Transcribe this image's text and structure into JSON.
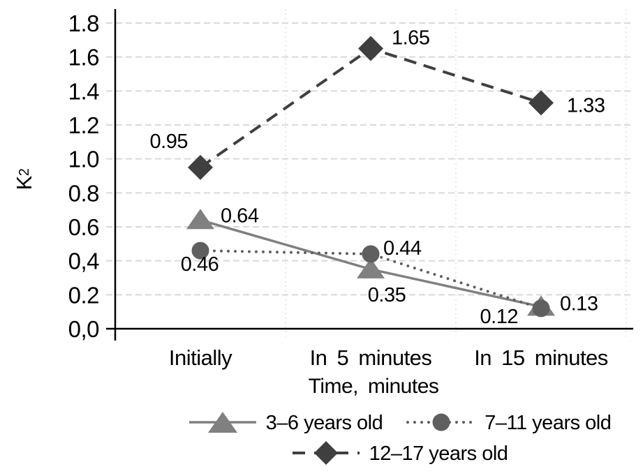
{
  "chart_data": {
    "type": "line",
    "title": "",
    "xlabel": "Time, minutes",
    "ylabel": {
      "base": "K",
      "sub": "2"
    },
    "categories": [
      "Initially",
      "In 5 minutes",
      "In 15 minutes"
    ],
    "y_ticks_bottom_up": [
      "0,0",
      "0.2",
      "0,4",
      "0.6",
      "0.8",
      "1.0",
      "1.2",
      "1.4",
      "1.6",
      "1.8"
    ],
    "ylim": [
      0,
      1.8
    ],
    "y_step": 0.2,
    "grid": {
      "horizontal": "dashed",
      "vertical": "dotted",
      "color": "#d9d9d9",
      "axis_color": "#000000"
    },
    "legend_position": "bottom",
    "legend_rows": [
      [
        0,
        1
      ],
      [
        2
      ]
    ],
    "series": [
      {
        "name": "3–6 years old",
        "marker": "triangle",
        "line": "solid",
        "color": "#808080",
        "values": [
          0.64,
          0.35,
          0.13
        ],
        "labels": [
          "0.64",
          "0.35",
          "0.13"
        ]
      },
      {
        "name": "7–11 years old",
        "marker": "circle",
        "line": "dotted",
        "color": "#5f5f5f",
        "values": [
          0.46,
          0.44,
          0.12
        ],
        "labels": [
          "0.46",
          "0.44",
          "0.12"
        ]
      },
      {
        "name": "12–17 years old",
        "marker": "diamond",
        "line": "dashed",
        "color": "#3f3f3f",
        "values": [
          0.95,
          1.65,
          1.33
        ],
        "labels": [
          "0.95",
          "1.65",
          "1.33"
        ]
      }
    ]
  }
}
